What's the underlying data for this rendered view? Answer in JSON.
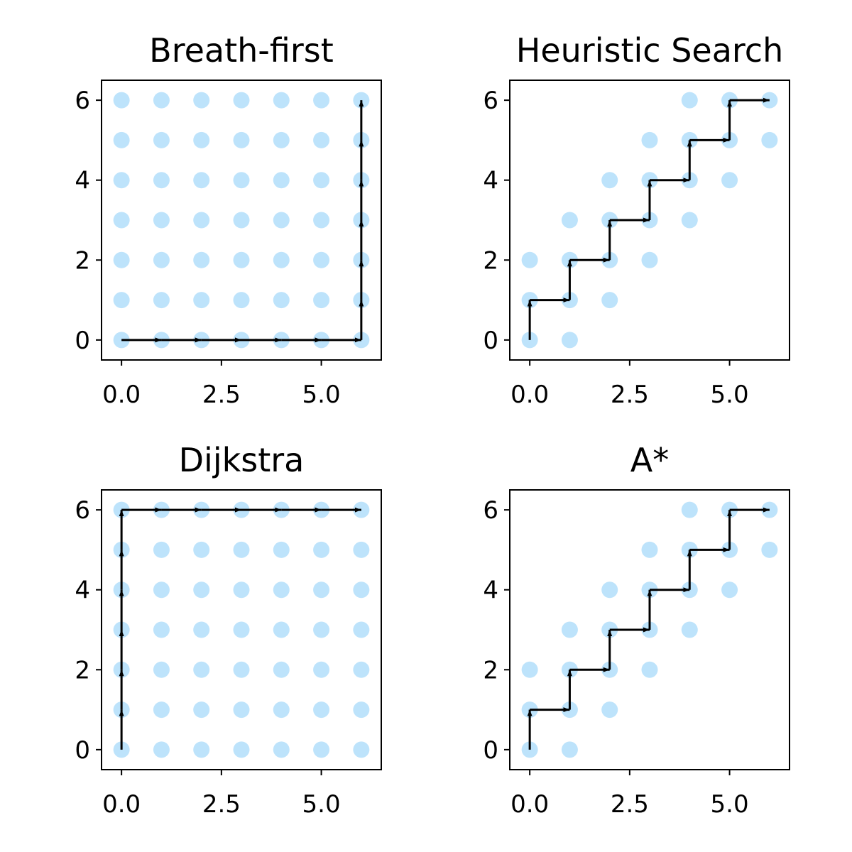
{
  "chart_data": [
    {
      "type": "scatter",
      "title": "Breath-first",
      "xlim": [
        -0.5,
        6.5
      ],
      "ylim": [
        -0.5,
        6.5
      ],
      "xticks": [
        "0.0",
        "2.5",
        "5.0"
      ],
      "yticks": [
        "0",
        "2",
        "4",
        "6"
      ],
      "visited_color": "#bde3fb",
      "path_color": "#000000",
      "visited": [
        [
          0,
          0
        ],
        [
          0,
          1
        ],
        [
          0,
          2
        ],
        [
          0,
          3
        ],
        [
          0,
          4
        ],
        [
          0,
          5
        ],
        [
          0,
          6
        ],
        [
          1,
          0
        ],
        [
          1,
          1
        ],
        [
          1,
          2
        ],
        [
          1,
          3
        ],
        [
          1,
          4
        ],
        [
          1,
          5
        ],
        [
          1,
          6
        ],
        [
          2,
          0
        ],
        [
          2,
          1
        ],
        [
          2,
          2
        ],
        [
          2,
          3
        ],
        [
          2,
          4
        ],
        [
          2,
          5
        ],
        [
          2,
          6
        ],
        [
          3,
          0
        ],
        [
          3,
          1
        ],
        [
          3,
          2
        ],
        [
          3,
          3
        ],
        [
          3,
          4
        ],
        [
          3,
          5
        ],
        [
          3,
          6
        ],
        [
          4,
          0
        ],
        [
          4,
          1
        ],
        [
          4,
          2
        ],
        [
          4,
          3
        ],
        [
          4,
          4
        ],
        [
          4,
          5
        ],
        [
          4,
          6
        ],
        [
          5,
          0
        ],
        [
          5,
          1
        ],
        [
          5,
          2
        ],
        [
          5,
          3
        ],
        [
          5,
          4
        ],
        [
          5,
          5
        ],
        [
          5,
          6
        ],
        [
          6,
          0
        ],
        [
          6,
          1
        ],
        [
          6,
          2
        ],
        [
          6,
          3
        ],
        [
          6,
          4
        ],
        [
          6,
          5
        ],
        [
          6,
          6
        ]
      ],
      "path": [
        [
          0,
          0
        ],
        [
          1,
          0
        ],
        [
          2,
          0
        ],
        [
          3,
          0
        ],
        [
          4,
          0
        ],
        [
          5,
          0
        ],
        [
          6,
          0
        ],
        [
          6,
          1
        ],
        [
          6,
          2
        ],
        [
          6,
          3
        ],
        [
          6,
          4
        ],
        [
          6,
          5
        ],
        [
          6,
          6
        ]
      ]
    },
    {
      "type": "scatter",
      "title": "Heuristic Search",
      "xlim": [
        -0.5,
        6.5
      ],
      "ylim": [
        -0.5,
        6.5
      ],
      "xticks": [
        "0.0",
        "2.5",
        "5.0"
      ],
      "yticks": [
        "0",
        "2",
        "4",
        "6"
      ],
      "visited_color": "#bde3fb",
      "path_color": "#000000",
      "visited": [
        [
          0,
          0
        ],
        [
          0,
          1
        ],
        [
          0,
          2
        ],
        [
          1,
          0
        ],
        [
          1,
          1
        ],
        [
          1,
          2
        ],
        [
          1,
          3
        ],
        [
          2,
          1
        ],
        [
          2,
          2
        ],
        [
          2,
          3
        ],
        [
          2,
          4
        ],
        [
          3,
          2
        ],
        [
          3,
          3
        ],
        [
          3,
          4
        ],
        [
          3,
          5
        ],
        [
          4,
          3
        ],
        [
          4,
          4
        ],
        [
          4,
          5
        ],
        [
          4,
          6
        ],
        [
          5,
          4
        ],
        [
          5,
          5
        ],
        [
          5,
          6
        ],
        [
          6,
          5
        ],
        [
          6,
          6
        ]
      ],
      "path": [
        [
          0,
          0
        ],
        [
          0,
          1
        ],
        [
          1,
          1
        ],
        [
          1,
          2
        ],
        [
          2,
          2
        ],
        [
          2,
          3
        ],
        [
          3,
          3
        ],
        [
          3,
          4
        ],
        [
          4,
          4
        ],
        [
          4,
          5
        ],
        [
          5,
          5
        ],
        [
          5,
          6
        ],
        [
          6,
          6
        ]
      ]
    },
    {
      "type": "scatter",
      "title": "Dijkstra",
      "xlim": [
        -0.5,
        6.5
      ],
      "ylim": [
        -0.5,
        6.5
      ],
      "xticks": [
        "0.0",
        "2.5",
        "5.0"
      ],
      "yticks": [
        "0",
        "2",
        "4",
        "6"
      ],
      "visited_color": "#bde3fb",
      "path_color": "#000000",
      "visited": [
        [
          0,
          0
        ],
        [
          0,
          1
        ],
        [
          0,
          2
        ],
        [
          0,
          3
        ],
        [
          0,
          4
        ],
        [
          0,
          5
        ],
        [
          0,
          6
        ],
        [
          1,
          0
        ],
        [
          1,
          1
        ],
        [
          1,
          2
        ],
        [
          1,
          3
        ],
        [
          1,
          4
        ],
        [
          1,
          5
        ],
        [
          1,
          6
        ],
        [
          2,
          0
        ],
        [
          2,
          1
        ],
        [
          2,
          2
        ],
        [
          2,
          3
        ],
        [
          2,
          4
        ],
        [
          2,
          5
        ],
        [
          2,
          6
        ],
        [
          3,
          0
        ],
        [
          3,
          1
        ],
        [
          3,
          2
        ],
        [
          3,
          3
        ],
        [
          3,
          4
        ],
        [
          3,
          5
        ],
        [
          3,
          6
        ],
        [
          4,
          0
        ],
        [
          4,
          1
        ],
        [
          4,
          2
        ],
        [
          4,
          3
        ],
        [
          4,
          4
        ],
        [
          4,
          5
        ],
        [
          4,
          6
        ],
        [
          5,
          0
        ],
        [
          5,
          1
        ],
        [
          5,
          2
        ],
        [
          5,
          3
        ],
        [
          5,
          4
        ],
        [
          5,
          5
        ],
        [
          5,
          6
        ],
        [
          6,
          0
        ],
        [
          6,
          1
        ],
        [
          6,
          2
        ],
        [
          6,
          3
        ],
        [
          6,
          4
        ],
        [
          6,
          5
        ],
        [
          6,
          6
        ]
      ],
      "path": [
        [
          0,
          0
        ],
        [
          0,
          1
        ],
        [
          0,
          2
        ],
        [
          0,
          3
        ],
        [
          0,
          4
        ],
        [
          0,
          5
        ],
        [
          0,
          6
        ],
        [
          1,
          6
        ],
        [
          2,
          6
        ],
        [
          3,
          6
        ],
        [
          4,
          6
        ],
        [
          5,
          6
        ],
        [
          6,
          6
        ]
      ]
    },
    {
      "type": "scatter",
      "title": "A*",
      "xlim": [
        -0.5,
        6.5
      ],
      "ylim": [
        -0.5,
        6.5
      ],
      "xticks": [
        "0.0",
        "2.5",
        "5.0"
      ],
      "yticks": [
        "0",
        "2",
        "4",
        "6"
      ],
      "visited_color": "#bde3fb",
      "path_color": "#000000",
      "visited": [
        [
          0,
          0
        ],
        [
          0,
          1
        ],
        [
          0,
          2
        ],
        [
          1,
          0
        ],
        [
          1,
          1
        ],
        [
          1,
          2
        ],
        [
          1,
          3
        ],
        [
          2,
          1
        ],
        [
          2,
          2
        ],
        [
          2,
          3
        ],
        [
          2,
          4
        ],
        [
          3,
          2
        ],
        [
          3,
          3
        ],
        [
          3,
          4
        ],
        [
          3,
          5
        ],
        [
          4,
          3
        ],
        [
          4,
          4
        ],
        [
          4,
          5
        ],
        [
          4,
          6
        ],
        [
          5,
          4
        ],
        [
          5,
          5
        ],
        [
          5,
          6
        ],
        [
          6,
          5
        ],
        [
          6,
          6
        ]
      ],
      "path": [
        [
          0,
          0
        ],
        [
          0,
          1
        ],
        [
          1,
          1
        ],
        [
          1,
          2
        ],
        [
          2,
          2
        ],
        [
          2,
          3
        ],
        [
          3,
          3
        ],
        [
          3,
          4
        ],
        [
          4,
          4
        ],
        [
          4,
          5
        ],
        [
          5,
          5
        ],
        [
          5,
          6
        ],
        [
          6,
          6
        ]
      ]
    }
  ]
}
